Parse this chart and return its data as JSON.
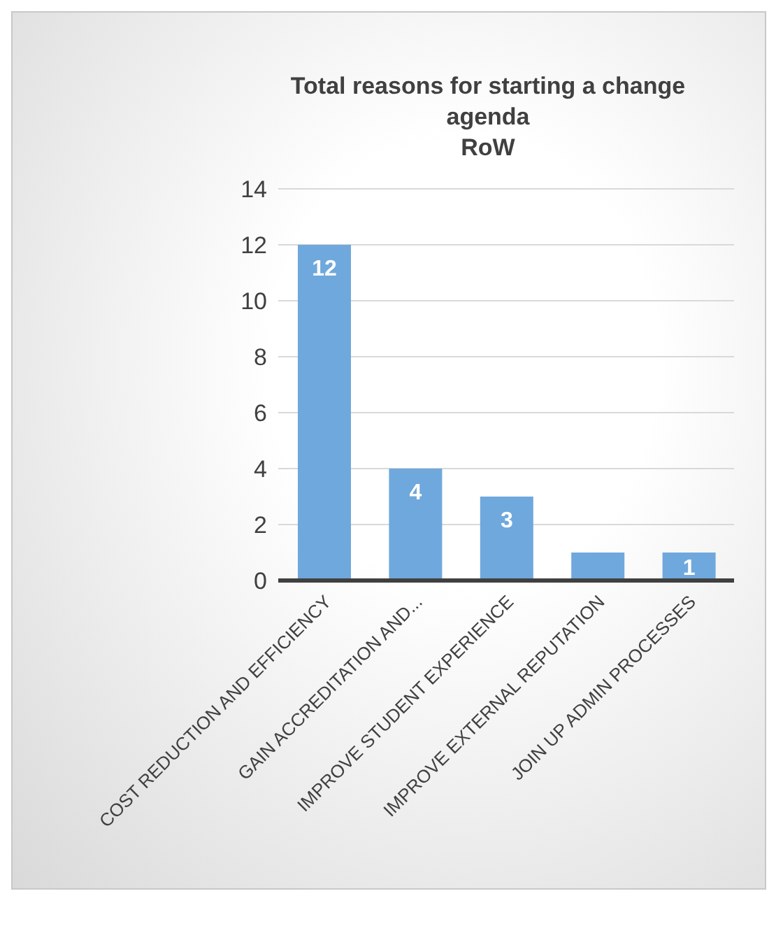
{
  "chart_data": {
    "type": "bar",
    "title": "Total reasons for starting a change agenda",
    "subtitle": "RoW",
    "categories": [
      "COST REDUCTION AND EFFICIENCY",
      "GAIN ACCREDITATION AND...",
      "IMPROVE STUDENT EXPERIENCE",
      "IMPROVE EXTERNAL REPUTATION",
      "JOIN UP ADMIN PROCESSES"
    ],
    "values": [
      12,
      4,
      3,
      1,
      1
    ],
    "color": "#6fa8dc",
    "value_labels": [
      "12",
      "4",
      "3",
      null,
      "1"
    ],
    "ylim": [
      0,
      14
    ],
    "yticks": [
      0,
      2,
      4,
      6,
      8,
      10,
      12,
      14
    ],
    "grid": "y",
    "legend": false
  }
}
